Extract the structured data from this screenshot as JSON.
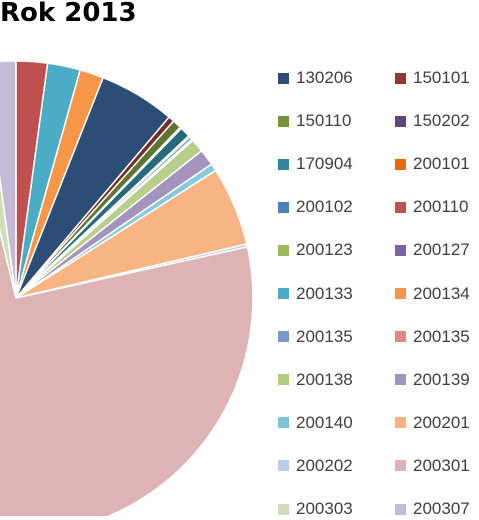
{
  "chart_data": {
    "type": "pie",
    "title": "Rok 2013",
    "slices": [
      {
        "label": "130206",
        "value": 0,
        "color": "#4F81BD"
      },
      {
        "label": "150101",
        "value": 2.1,
        "color": "#C0504D"
      },
      {
        "label": "150110",
        "value": 0,
        "color": "#9BBB59"
      },
      {
        "label": "150202",
        "value": 0,
        "color": "#8064A2"
      },
      {
        "label": "170904",
        "value": 2.2,
        "color": "#4BACC6"
      },
      {
        "label": "200101",
        "value": 1.6,
        "color": "#F79646"
      },
      {
        "label": "200102",
        "value": 5.1,
        "color": "#2C4D75"
      },
      {
        "label": "200110",
        "value": 0.4,
        "color": "#772C2A"
      },
      {
        "label": "200123",
        "value": 0.6,
        "color": "#5F7530"
      },
      {
        "label": "200127",
        "value": 0.1,
        "color": "#4D3B62"
      },
      {
        "label": "200133",
        "value": 0.7,
        "color": "#276A7C"
      },
      {
        "label": "200134",
        "value": 0.1,
        "color": "#B65708"
      },
      {
        "label": "200135",
        "value": 0.2,
        "color": "#729ACA"
      },
      {
        "label": "200135",
        "value": 0.1,
        "color": "#D9A3A2"
      },
      {
        "label": "200138",
        "value": 0.9,
        "color": "#B7CF8B"
      },
      {
        "label": "200139",
        "value": 1.1,
        "color": "#A493BD"
      },
      {
        "label": "200140",
        "value": 0.5,
        "color": "#87CADB"
      },
      {
        "label": "200201",
        "value": 5.3,
        "color": "#F9B483"
      },
      {
        "label": "200202",
        "value": 0.2,
        "color": "#B9CDE5"
      },
      {
        "label": "200301",
        "value": 73.5,
        "color": "#DDB4B3"
      },
      {
        "label": "200303",
        "value": 1.6,
        "color": "#CFDEB9"
      },
      {
        "label": "200307",
        "value": 2.1,
        "color": "#C4BAD6"
      }
    ],
    "legend_position": "right",
    "legend_colors": [
      "#2C4D75",
      "#943634",
      "#77933C",
      "#5F497A",
      "#31859C",
      "#E46C0A",
      "#4F81BD",
      "#C0504D",
      "#9BBB59",
      "#8064A2",
      "#4BACC6",
      "#F79646",
      "#729ACA",
      "#D98A88",
      "#B3CC82",
      "#A493BD",
      "#7EC3D6",
      "#F9B082",
      "#B9CDE5",
      "#DDB4B3",
      "#CFDEB9",
      "#C4BAD6"
    ]
  }
}
